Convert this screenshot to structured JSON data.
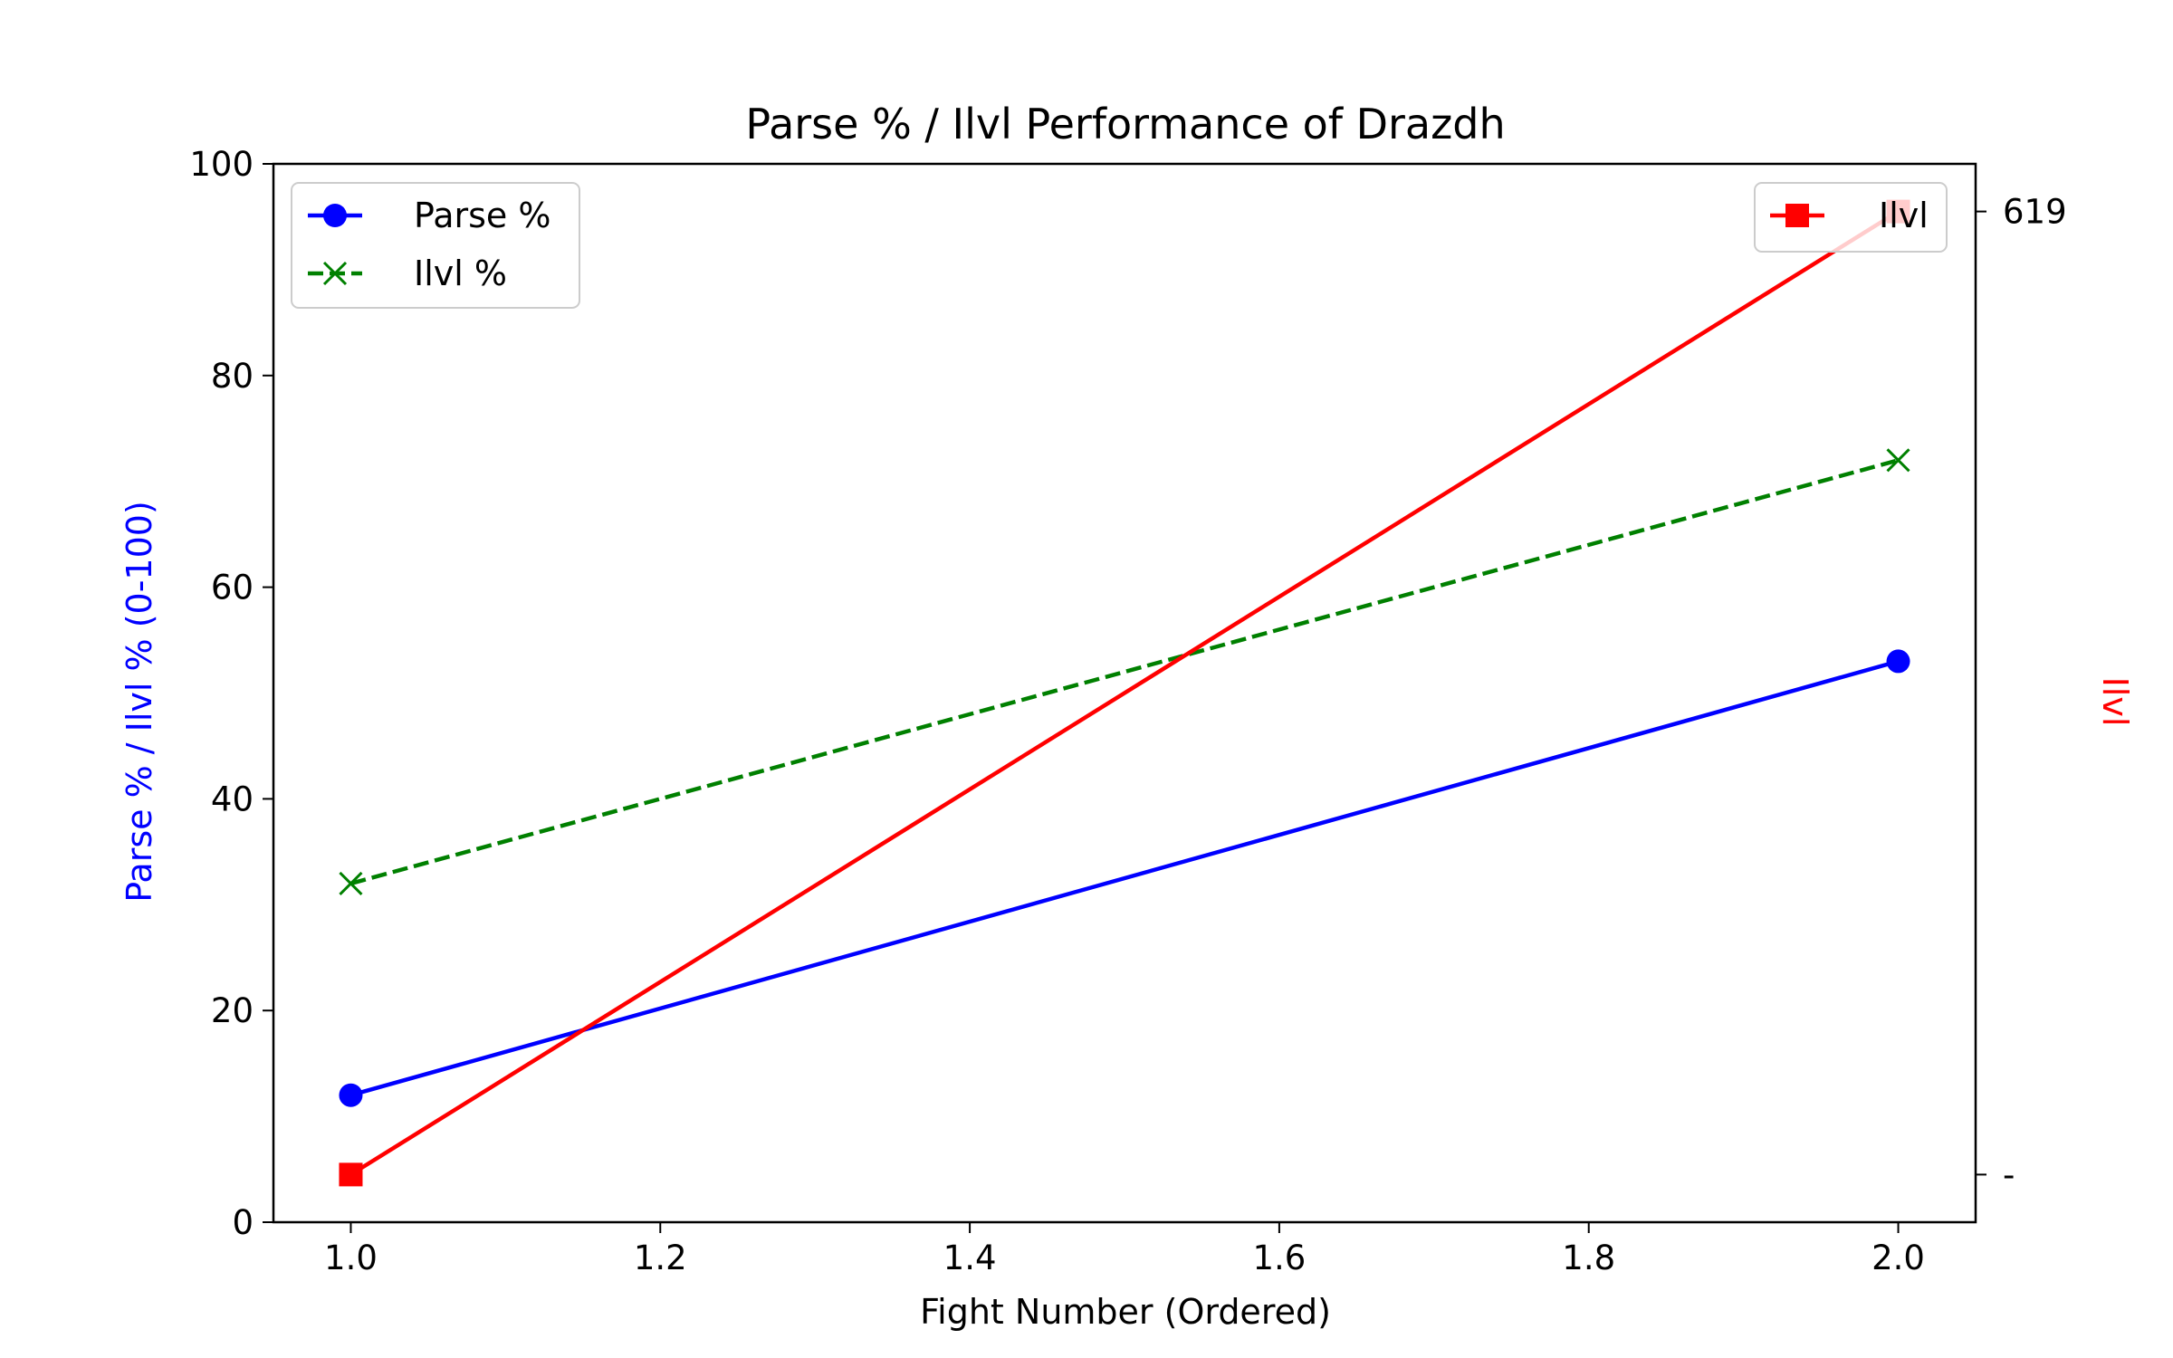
{
  "chart_data": {
    "type": "line",
    "title": "Parse % / Ilvl Performance of Drazdh",
    "xlabel": "Fight Number (Ordered)",
    "ylabel_left": "Parse % / Ilvl % (0-100)",
    "ylabel_right": "Ilvl",
    "x": [
      1.0,
      2.0
    ],
    "xlim": [
      0.95,
      2.05
    ],
    "xticks": [
      "1.0",
      "1.2",
      "1.4",
      "1.6",
      "1.8",
      "2.0"
    ],
    "ylim_left": [
      0,
      100
    ],
    "yticks_left": [
      "0",
      "20",
      "40",
      "60",
      "80",
      "100"
    ],
    "yticks_right": [
      "-",
      "619"
    ],
    "series": [
      {
        "name": "Parse %",
        "axis": "left",
        "values": [
          12,
          53
        ],
        "color": "#0000ff",
        "linestyle": "solid",
        "marker": "circle"
      },
      {
        "name": "Ilvl %",
        "axis": "left",
        "values": [
          32,
          72
        ],
        "color": "#008000",
        "linestyle": "dashed",
        "marker": "x"
      },
      {
        "name": "Ilvl",
        "axis": "right",
        "values": [
          4.5,
          95.5
        ],
        "color": "#ff0000",
        "linestyle": "solid",
        "marker": "square"
      }
    ],
    "legend_left": [
      "Parse %",
      "Ilvl %"
    ],
    "legend_right": [
      "Ilvl"
    ],
    "legend_placement": [
      "upper-left",
      "upper-right"
    ],
    "grid": false
  }
}
